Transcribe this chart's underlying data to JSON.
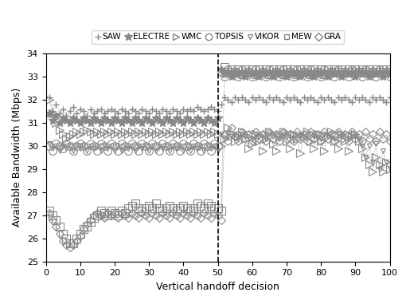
{
  "title": "",
  "xlabel": "Vertical handoff decision",
  "ylabel": "Available Bandwidth (Mbps)",
  "xlim": [
    0,
    100
  ],
  "ylim": [
    25,
    34
  ],
  "yticks": [
    25,
    26,
    27,
    28,
    29,
    30,
    31,
    32,
    33,
    34
  ],
  "xticks": [
    0,
    10,
    20,
    30,
    40,
    50,
    60,
    70,
    80,
    90,
    100
  ],
  "vline_x": 50,
  "background_color": "#ffffff",
  "SAW_case1": [
    32.1,
    31.5,
    31.8,
    31.4,
    31.6,
    31.3,
    31.5,
    31.7,
    31.4,
    31.6,
    31.5,
    31.3,
    31.6,
    31.4,
    31.5,
    31.6,
    31.4,
    31.5,
    31.6,
    31.5,
    31.4,
    31.6,
    31.5,
    31.4,
    31.6,
    31.5,
    31.4,
    31.6,
    31.5,
    31.4,
    31.6,
    31.5,
    31.4,
    31.6,
    31.5,
    31.4,
    31.6,
    31.5,
    31.4,
    31.6,
    31.5,
    31.6,
    31.5,
    31.7,
    31.6,
    31.5,
    31.6,
    31.7,
    31.6,
    31.5
  ],
  "SAW_case2": [
    31.8,
    32.1,
    32.0,
    31.9,
    32.1,
    32.0,
    32.1,
    32.0,
    31.9,
    32.1,
    32.0,
    32.1,
    32.0,
    31.9,
    32.1,
    32.0,
    32.1,
    32.0,
    31.9,
    32.1,
    32.0,
    32.1,
    32.0,
    31.9,
    32.1,
    32.0,
    32.1,
    32.0,
    31.9,
    32.1,
    32.0,
    32.1,
    32.0,
    31.9,
    32.1,
    32.0,
    32.1,
    32.0,
    31.9,
    32.1,
    32.0,
    32.1,
    32.0,
    31.9,
    32.1,
    32.0,
    32.1,
    32.0,
    31.9,
    32.1
  ],
  "ELECTRE_case1": [
    31.4,
    31.1,
    31.3,
    31.0,
    31.2,
    31.1,
    31.0,
    31.2,
    31.1,
    31.0,
    31.2,
    31.1,
    31.0,
    31.2,
    31.1,
    31.0,
    31.2,
    31.1,
    31.0,
    31.2,
    31.1,
    31.0,
    31.2,
    31.1,
    31.0,
    31.2,
    31.1,
    31.0,
    31.2,
    31.1,
    31.0,
    31.2,
    31.1,
    31.0,
    31.2,
    31.1,
    31.0,
    31.2,
    31.1,
    31.0,
    31.2,
    31.1,
    31.0,
    31.2,
    31.1,
    31.0,
    31.2,
    31.1,
    31.0,
    31.2
  ],
  "ELECTRE_case2": [
    33.3,
    33.1,
    33.2,
    33.0,
    33.2,
    33.1,
    33.2,
    33.0,
    33.2,
    33.1,
    33.2,
    33.0,
    33.2,
    33.1,
    33.2,
    33.0,
    33.2,
    33.1,
    33.2,
    33.0,
    33.2,
    33.1,
    33.2,
    33.0,
    33.2,
    33.1,
    33.2,
    33.0,
    33.2,
    33.1,
    33.2,
    33.0,
    33.2,
    33.1,
    33.2,
    33.0,
    33.2,
    33.1,
    33.2,
    33.0,
    33.2,
    33.1,
    33.2,
    33.0,
    33.2,
    33.1,
    33.2,
    33.0,
    33.2,
    33.1
  ],
  "WMC_case1": [
    32.0,
    31.4,
    31.0,
    30.7,
    30.5,
    30.3,
    30.4,
    30.5,
    30.6,
    30.5,
    30.6,
    30.7,
    30.6,
    30.5,
    30.6,
    30.5,
    30.6,
    30.5,
    30.6,
    30.5,
    30.6,
    30.5,
    30.6,
    30.5,
    30.6,
    30.5,
    30.6,
    30.5,
    30.6,
    30.5,
    30.6,
    30.5,
    30.6,
    30.5,
    30.6,
    30.5,
    30.6,
    30.5,
    30.6,
    30.5,
    30.6,
    30.5,
    30.6,
    30.5,
    30.6,
    30.5,
    30.6,
    30.5,
    30.6,
    30.5
  ],
  "WMC_case2": [
    30.0,
    30.3,
    30.8,
    30.5,
    30.2,
    30.4,
    30.6,
    30.3,
    29.9,
    30.1,
    30.5,
    30.2,
    29.8,
    30.3,
    30.6,
    30.1,
    29.8,
    30.4,
    30.6,
    30.2,
    29.9,
    30.5,
    30.3,
    29.7,
    30.4,
    30.6,
    30.2,
    29.9,
    30.5,
    30.2,
    29.8,
    30.4,
    30.6,
    30.2,
    29.9,
    30.5,
    30.2,
    29.8,
    30.4,
    30.5,
    30.2,
    29.9,
    29.5,
    29.2,
    28.9,
    29.5,
    29.2,
    28.9,
    29.3,
    29.0
  ],
  "TOPSIS_case1": [
    30.0,
    29.8,
    30.1,
    30.0,
    29.9,
    30.1,
    30.0,
    29.8,
    30.0,
    30.1,
    30.0,
    29.8,
    30.1,
    30.0,
    29.8,
    30.1,
    30.0,
    29.8,
    30.1,
    30.0,
    29.8,
    30.1,
    30.0,
    29.8,
    30.1,
    30.0,
    29.8,
    30.1,
    30.0,
    29.8,
    30.1,
    30.0,
    29.8,
    30.1,
    30.0,
    29.8,
    30.1,
    30.0,
    29.8,
    30.1,
    30.0,
    29.8,
    30.1,
    30.0,
    29.8,
    30.1,
    30.0,
    29.8,
    30.1,
    30.0
  ],
  "TOPSIS_case2": [
    33.2,
    33.0,
    33.3,
    33.1,
    33.2,
    33.0,
    33.3,
    33.1,
    33.2,
    33.0,
    33.3,
    33.1,
    33.2,
    33.0,
    33.3,
    33.1,
    33.2,
    33.0,
    33.3,
    33.1,
    33.2,
    33.0,
    33.3,
    33.1,
    33.2,
    33.0,
    33.3,
    33.1,
    33.2,
    33.0,
    33.3,
    33.1,
    33.2,
    33.0,
    33.3,
    33.1,
    33.2,
    33.0,
    33.3,
    33.1,
    33.2,
    33.0,
    33.3,
    33.1,
    33.2,
    33.0,
    33.3,
    33.1,
    33.2,
    33.0
  ],
  "VIKOR_case1": [
    30.1,
    29.9,
    30.0,
    29.8,
    30.0,
    29.9,
    30.0,
    29.8,
    30.0,
    29.9,
    30.0,
    29.8,
    30.0,
    29.9,
    30.0,
    29.8,
    30.0,
    29.9,
    30.0,
    29.8,
    30.0,
    29.8,
    30.0,
    29.9,
    30.0,
    29.8,
    30.0,
    29.9,
    30.0,
    29.8,
    30.0,
    29.8,
    30.0,
    29.9,
    30.0,
    29.8,
    30.0,
    29.9,
    30.0,
    29.8,
    30.0,
    29.8,
    30.0,
    29.9,
    30.0,
    29.8,
    30.0,
    29.9,
    30.0,
    29.8
  ],
  "VIKOR_case2": [
    30.5,
    30.3,
    30.5,
    30.4,
    30.5,
    30.3,
    30.5,
    30.4,
    30.5,
    30.3,
    30.5,
    30.4,
    30.5,
    30.3,
    30.5,
    30.4,
    30.5,
    30.3,
    30.5,
    30.4,
    30.5,
    30.3,
    30.5,
    30.4,
    30.5,
    30.3,
    30.5,
    30.4,
    30.5,
    30.3,
    30.5,
    30.4,
    30.5,
    30.3,
    30.5,
    30.4,
    30.5,
    30.3,
    30.5,
    30.4,
    30.3,
    30.0,
    29.5,
    30.0,
    29.3,
    30.1,
    29.0,
    29.8,
    29.3,
    29.0
  ],
  "MEW_case1": [
    27.2,
    27.0,
    26.8,
    26.5,
    26.2,
    26.0,
    25.8,
    25.8,
    26.0,
    26.2,
    26.4,
    26.5,
    26.7,
    26.9,
    27.0,
    27.2,
    27.1,
    27.0,
    27.2,
    27.1,
    27.0,
    27.2,
    27.1,
    27.3,
    27.4,
    27.5,
    27.3,
    27.2,
    27.3,
    27.4,
    27.3,
    27.5,
    27.3,
    27.2,
    27.3,
    27.4,
    27.3,
    27.2,
    27.3,
    27.4,
    27.3,
    27.2,
    27.3,
    27.5,
    27.4,
    27.3,
    27.5,
    27.4,
    27.3,
    27.3
  ],
  "MEW_case2": [
    27.2,
    33.4,
    33.2,
    33.3,
    33.2,
    33.3,
    33.1,
    33.3,
    33.2,
    33.3,
    33.1,
    33.3,
    33.2,
    33.3,
    33.1,
    33.3,
    33.2,
    33.3,
    33.1,
    33.3,
    33.2,
    33.3,
    33.1,
    33.3,
    33.2,
    33.3,
    33.1,
    33.3,
    33.2,
    33.3,
    33.1,
    33.3,
    33.2,
    33.3,
    33.2,
    33.3,
    33.2,
    33.3,
    33.2,
    33.3,
    33.2,
    33.3,
    33.2,
    33.3,
    33.2,
    33.3,
    33.2,
    33.3,
    33.2,
    33.3
  ],
  "GRA_case1": [
    27.1,
    26.8,
    26.5,
    26.2,
    25.9,
    25.7,
    25.6,
    25.7,
    25.9,
    26.1,
    26.4,
    26.6,
    26.8,
    27.0,
    27.1,
    27.0,
    26.9,
    27.1,
    27.0,
    27.1,
    26.9,
    27.1,
    27.0,
    26.9,
    27.1,
    27.0,
    26.9,
    27.1,
    27.0,
    26.9,
    27.1,
    27.0,
    26.9,
    27.1,
    27.0,
    26.9,
    27.1,
    27.0,
    26.9,
    27.1,
    27.0,
    26.9,
    27.1,
    27.0,
    26.9,
    27.1,
    27.0,
    26.9,
    27.1,
    27.0
  ],
  "GRA_case2": [
    26.8,
    30.5,
    30.2,
    30.8,
    30.4,
    30.2,
    30.6,
    30.3,
    30.5,
    30.2,
    30.6,
    30.3,
    30.5,
    30.2,
    30.6,
    30.3,
    30.5,
    30.2,
    30.6,
    30.3,
    30.5,
    30.2,
    30.6,
    30.3,
    30.5,
    30.2,
    30.6,
    30.3,
    30.5,
    30.2,
    30.6,
    30.3,
    30.5,
    30.2,
    30.6,
    30.3,
    30.5,
    30.2,
    30.6,
    30.3,
    30.5,
    30.2,
    30.6,
    30.3,
    30.5,
    30.2,
    30.6,
    30.3,
    30.5,
    30.2
  ]
}
